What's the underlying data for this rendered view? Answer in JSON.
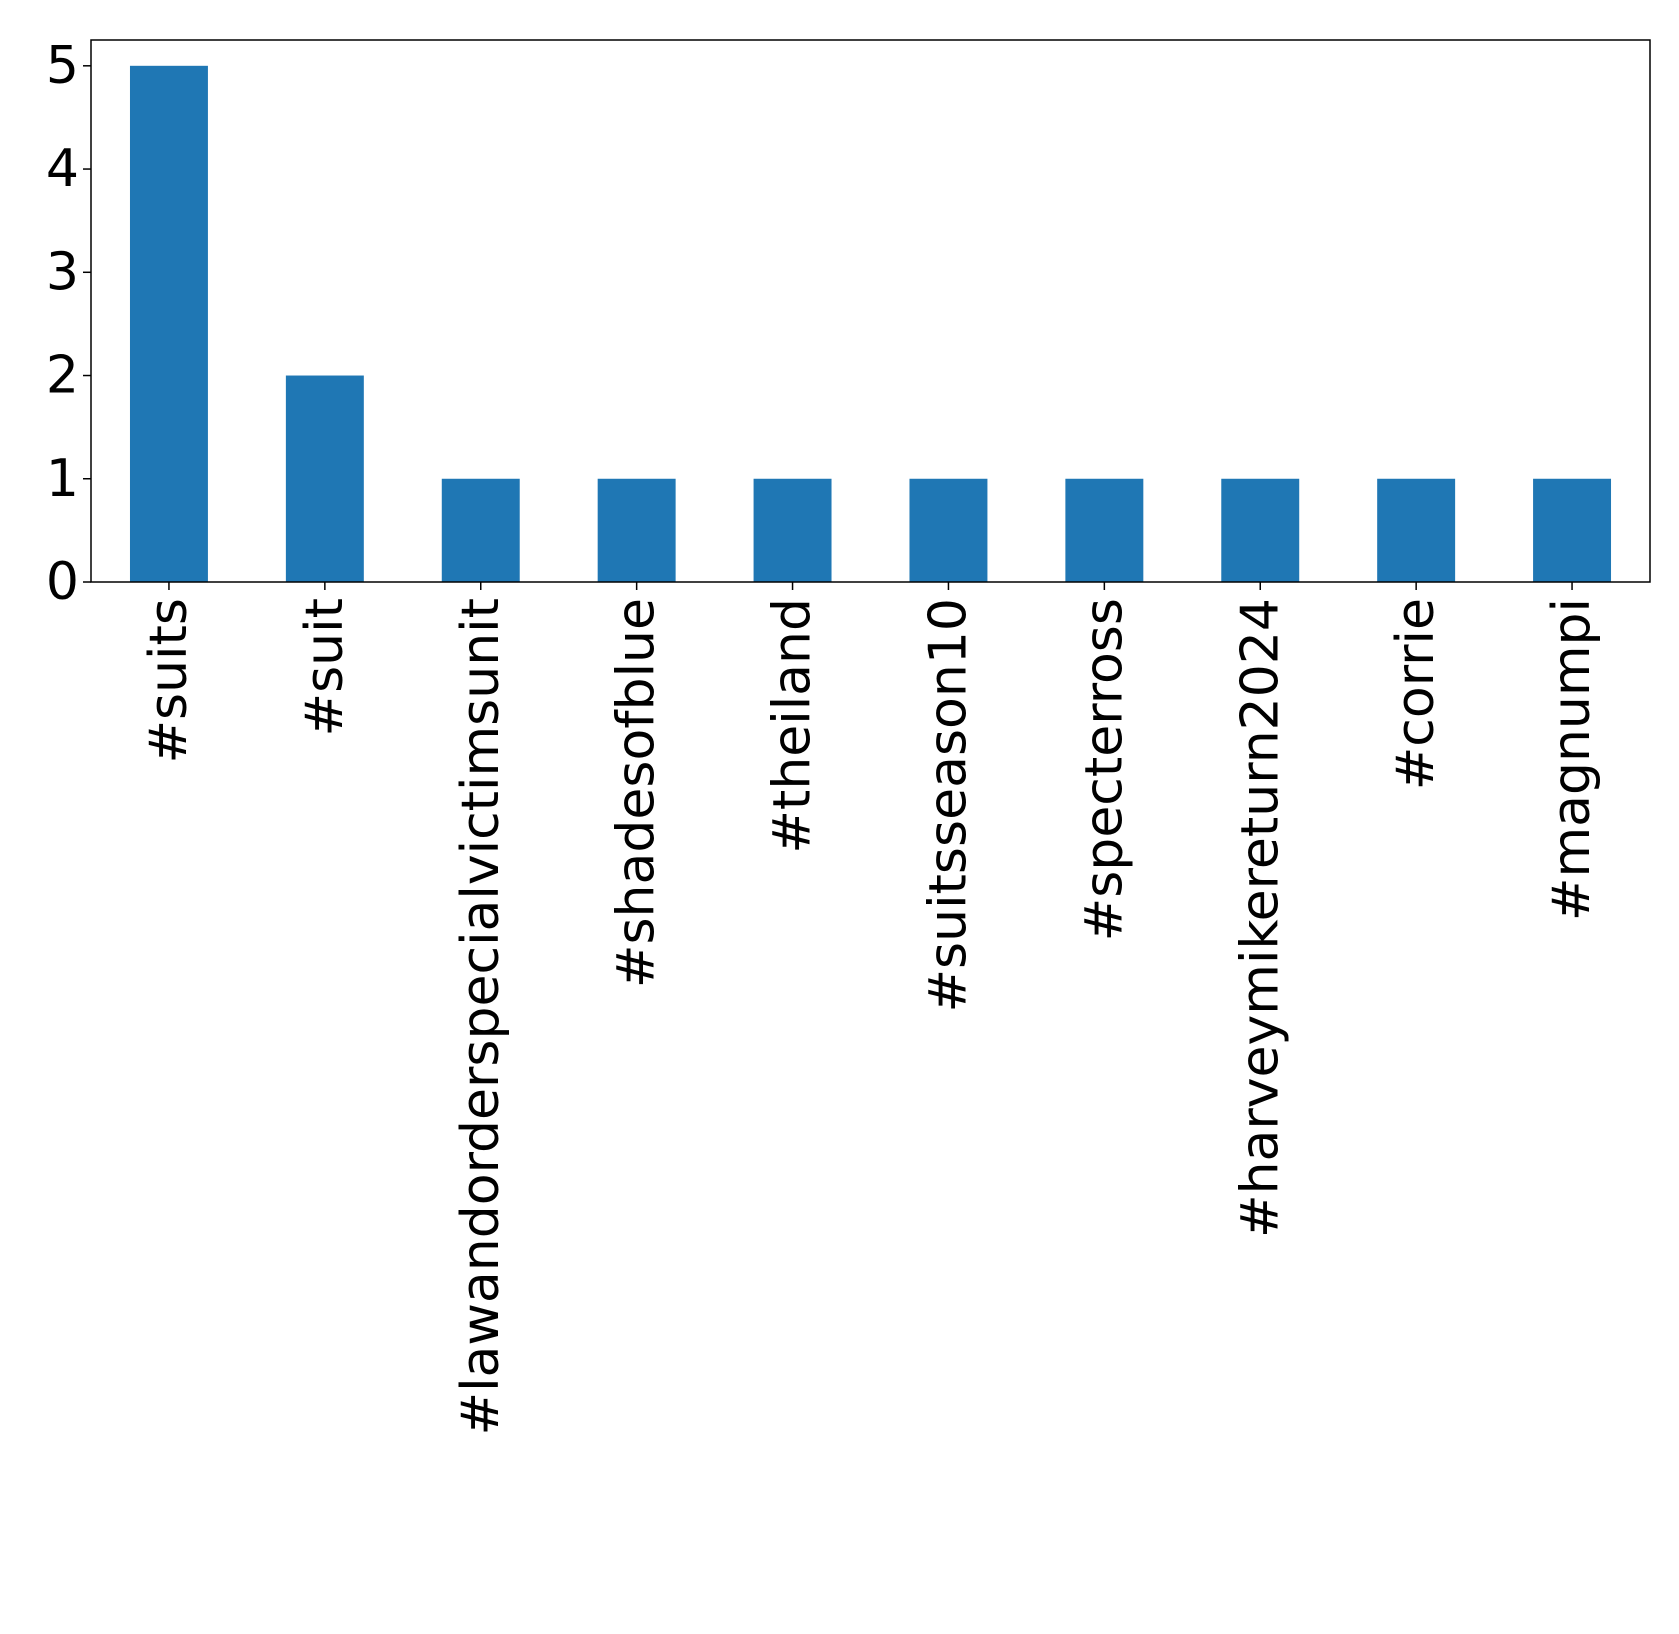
{
  "chart_data": {
    "type": "bar",
    "title": "",
    "xlabel": "",
    "ylabel": "",
    "categories": [
      "#suits",
      "#suit",
      "#lawandorderspecialvictimsunit",
      "#shadesofblue",
      "#theiland",
      "#suitsseason10",
      "#specterross",
      "#harveymikereturn2024",
      "#corrie",
      "#magnumpi"
    ],
    "values": [
      5,
      2,
      1,
      1,
      1,
      1,
      1,
      1,
      1,
      1
    ],
    "ylim": [
      0,
      5.25
    ],
    "yticks": [
      0,
      1,
      2,
      3,
      4,
      5
    ],
    "bar_color": "#1f77b4",
    "grid": false,
    "legend": "none"
  }
}
